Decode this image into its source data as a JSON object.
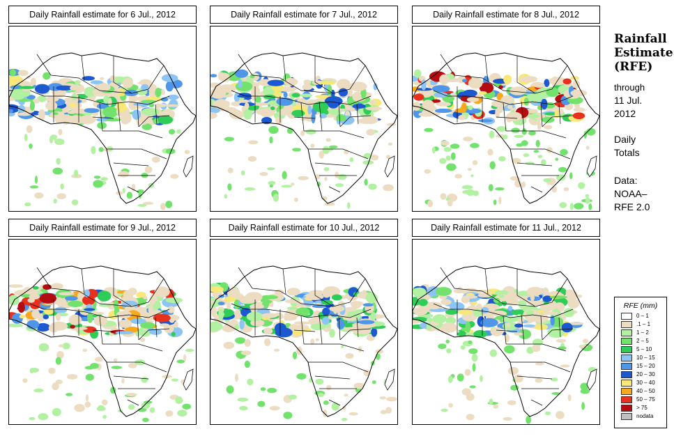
{
  "panels": [
    {
      "title": "Daily Rainfall estimate for  6 Jul., 2012"
    },
    {
      "title": "Daily Rainfall estimate for  7 Jul., 2012"
    },
    {
      "title": "Daily Rainfall estimate for  8 Jul., 2012"
    },
    {
      "title": "Daily Rainfall estimate for  9 Jul., 2012"
    },
    {
      "title": "Daily Rainfall estimate for  10 Jul., 2012"
    },
    {
      "title": "Daily Rainfall estimate for  11 Jul., 2012"
    }
  ],
  "side": {
    "title_line1": "Rainfall",
    "title_line2": "Estimate",
    "title_line3": "(RFE)",
    "through_label": "through",
    "through_date_line1": "11 Jul.",
    "through_date_line2": "2012",
    "totals_line1": "Daily",
    "totals_line2": "Totals",
    "data_label": "Data:",
    "data_source_line1": "NOAA–",
    "data_source_line2": "RFE 2.0"
  },
  "legend": {
    "title": "RFE (mm)",
    "items": [
      {
        "label": "0 – 1",
        "color": "#ffffff"
      },
      {
        "label": ".1 – 1",
        "color": "#ecdcc2"
      },
      {
        "label": "1 – 2",
        "color": "#b2f0a2"
      },
      {
        "label": "2 – 5",
        "color": "#72e26c"
      },
      {
        "label": "5 – 10",
        "color": "#30cc58"
      },
      {
        "label": "10 – 15",
        "color": "#8cc4f4"
      },
      {
        "label": "15 – 20",
        "color": "#5096e8"
      },
      {
        "label": "20 – 30",
        "color": "#1c58d0"
      },
      {
        "label": "30 – 40",
        "color": "#f8e878"
      },
      {
        "label": "40 – 50",
        "color": "#f8a81c"
      },
      {
        "label": "50 – 75",
        "color": "#e8301c"
      },
      {
        "label": "> 75",
        "color": "#b40c10"
      },
      {
        "label": "nodata",
        "color": "#c0c0c0"
      }
    ]
  }
}
